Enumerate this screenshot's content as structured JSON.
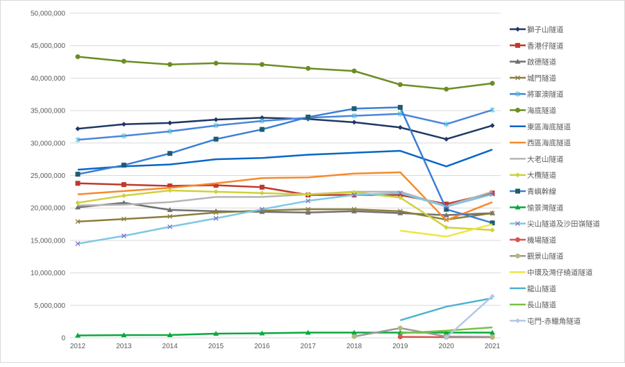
{
  "chart_data": {
    "type": "line",
    "title": "",
    "xlabel": "",
    "ylabel": "",
    "x": [
      "2012",
      "2013",
      "2014",
      "2015",
      "2016",
      "2017",
      "2018",
      "2019",
      "2020",
      "2021"
    ],
    "ylim": [
      0,
      50000000
    ],
    "yticks": [
      "0",
      "5,000,000",
      "10,000,000",
      "15,000,000",
      "20,000,000",
      "25,000,000",
      "30,000,000",
      "35,000,000",
      "40,000,000",
      "45,000,000",
      "50,000,000"
    ],
    "grid": true,
    "legend_position": "right",
    "series": [
      {
        "name": "獅子山隧道",
        "color": "#1f3864",
        "marker": "diamond",
        "values": [
          32200000,
          32900000,
          33100000,
          33600000,
          33900000,
          33700000,
          33200000,
          32400000,
          30600000,
          32700000
        ]
      },
      {
        "name": "香港仔隧道",
        "color": "#c0392b",
        "marker": "square",
        "values": [
          23800000,
          23600000,
          23400000,
          23500000,
          23200000,
          22000000,
          22000000,
          22000000,
          20600000,
          22300000
        ]
      },
      {
        "name": "啟德隧道",
        "color": "#707070",
        "marker": "triangle",
        "values": [
          20100000,
          20800000,
          19700000,
          19500000,
          19400000,
          19300000,
          19500000,
          19200000,
          18900000,
          19200000
        ]
      },
      {
        "name": "城門隧道",
        "color": "#8b7d3a",
        "marker": "x",
        "values": [
          17900000,
          18300000,
          18700000,
          19300000,
          19600000,
          19800000,
          19800000,
          19500000,
          18200000,
          19200000
        ]
      },
      {
        "name": "將軍澳隧道",
        "color": "#4a86d8",
        "marker": "asterisk",
        "values": [
          30500000,
          31100000,
          31800000,
          32700000,
          33400000,
          33900000,
          34200000,
          34500000,
          32900000,
          35100000
        ]
      },
      {
        "name": "海底隧道",
        "color": "#6b8e23",
        "marker": "circle",
        "values": [
          43300000,
          42600000,
          42100000,
          42300000,
          42100000,
          41500000,
          41100000,
          39000000,
          38300000,
          39200000
        ]
      },
      {
        "name": "東區海底隧道",
        "color": "#0866c6",
        "marker": "none",
        "values": [
          25900000,
          26400000,
          26700000,
          27500000,
          27700000,
          28200000,
          28500000,
          28800000,
          26400000,
          29000000
        ]
      },
      {
        "name": "西區海底隧道",
        "color": "#f58a2c",
        "marker": "none",
        "values": [
          22100000,
          22600000,
          23100000,
          23800000,
          24600000,
          24700000,
          25300000,
          25500000,
          18100000,
          20900000
        ]
      },
      {
        "name": "大老山隧道",
        "color": "#b4b4b4",
        "marker": "none",
        "values": [
          20400000,
          20500000,
          20900000,
          21700000,
          21700000,
          22100000,
          22500000,
          22500000,
          20300000,
          22500000
        ]
      },
      {
        "name": "大欖隧道",
        "color": "#cfd13a",
        "marker": "diamond",
        "values": [
          20800000,
          21900000,
          22700000,
          22500000,
          22300000,
          22100000,
          22400000,
          21600000,
          17000000,
          16600000
        ]
      },
      {
        "name": "青嶼幹線",
        "color": "#3b7fd4",
        "marker": "square",
        "markerColor": "#1e5d6e",
        "values": [
          25200000,
          26600000,
          28400000,
          30600000,
          32100000,
          34000000,
          35300000,
          35500000,
          19800000,
          17700000
        ]
      },
      {
        "name": "愉景灣隧道",
        "color": "#0aa83e",
        "marker": "triangle",
        "values": [
          360000,
          420000,
          430000,
          640000,
          700000,
          800000,
          800000,
          800000,
          800000,
          800000
        ]
      },
      {
        "name": "尖山隧道及沙田嶺隧道",
        "color": "#7ec8e3",
        "marker": "x",
        "markerColor": "#7f6fc8",
        "values": [
          14500000,
          15700000,
          17100000,
          18400000,
          19800000,
          21100000,
          22000000,
          22300000,
          20200000,
          22100000
        ]
      },
      {
        "name": "機場隧道",
        "color": "#d9534f",
        "marker": "circle",
        "values": [
          null,
          null,
          null,
          null,
          null,
          null,
          null,
          150000,
          100000,
          100000
        ]
      },
      {
        "name": "觀景山隧道",
        "color": "#9a9a9a",
        "marker": "circle",
        "markerColor": "#b5b87a",
        "values": [
          null,
          null,
          null,
          null,
          null,
          null,
          200000,
          1500000,
          200000,
          150000
        ]
      },
      {
        "name": "中環及灣仔繞道隧道",
        "color": "#f0e442",
        "marker": "none",
        "values": [
          null,
          null,
          null,
          null,
          null,
          null,
          null,
          16500000,
          15600000,
          17500000
        ]
      },
      {
        "name": "龍山隧道",
        "color": "#4eb3d3",
        "marker": "none",
        "values": [
          null,
          null,
          null,
          null,
          null,
          null,
          null,
          2700000,
          4800000,
          6100000
        ]
      },
      {
        "name": "長山隧道",
        "color": "#7ac142",
        "marker": "none",
        "values": [
          null,
          null,
          null,
          null,
          null,
          null,
          null,
          700000,
          1100000,
          1600000
        ]
      },
      {
        "name": "屯門-赤鱲角隧道",
        "color": "#b4c7e7",
        "marker": "diamond",
        "values": [
          null,
          null,
          null,
          null,
          null,
          null,
          null,
          null,
          50000,
          6400000
        ]
      }
    ]
  }
}
